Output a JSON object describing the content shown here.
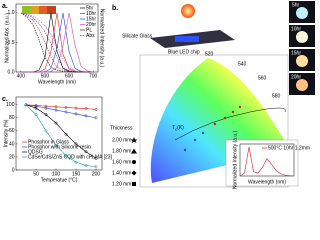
{
  "chart_data": [
    {
      "type": "line",
      "panel": "a.",
      "xlabel": "Wavelength (nm)",
      "ylabel": "Normalized Abs. (a.u.)",
      "y2label": "Normalized Intensity (a.u.)",
      "x": [
        400,
        425,
        450,
        475,
        500,
        525,
        550,
        575,
        600,
        625,
        650,
        675,
        700
      ],
      "xlim": [
        380,
        720
      ],
      "xticks": [
        400,
        500,
        600,
        700
      ],
      "ylim": [
        0,
        1.15
      ],
      "yticks": [
        {
          "value": 0,
          "label": "0.0"
        },
        0.5,
        {
          "value": 1,
          "label": "1.0"
        }
      ],
      "series": [
        {
          "name": "5hr",
          "color": "#000000",
          "values": [
            0,
            0,
            0,
            0.03,
            0.25,
            1.0,
            0.35,
            0.06,
            0.01,
            0,
            0,
            0,
            0
          ]
        },
        {
          "name": "10hr",
          "color": "#e02020",
          "values": [
            0,
            0,
            0,
            0,
            0.05,
            0.35,
            1.0,
            0.3,
            0.05,
            0.01,
            0,
            0,
            0
          ]
        },
        {
          "name": "15hr",
          "color": "#2040e0",
          "values": [
            0,
            0,
            0,
            0,
            0,
            0.06,
            0.4,
            1.0,
            0.35,
            0.06,
            0.01,
            0,
            0
          ]
        },
        {
          "name": "20hr",
          "color": "#e040c0",
          "values": [
            0,
            0,
            0,
            0,
            0,
            0.01,
            0.08,
            0.45,
            1.0,
            0.45,
            0.1,
            0.02,
            0
          ]
        }
      ],
      "abs_series": [
        {
          "values": [
            1.0,
            0.93,
            0.8,
            0.55,
            0.25,
            0.08,
            0.03,
            0.01,
            0,
            0,
            0,
            0,
            0
          ]
        },
        {
          "values": [
            1.0,
            0.95,
            0.88,
            0.72,
            0.5,
            0.25,
            0.08,
            0.03,
            0.01,
            0,
            0,
            0,
            0
          ]
        },
        {
          "values": [
            1.0,
            0.97,
            0.92,
            0.82,
            0.68,
            0.48,
            0.25,
            0.08,
            0.02,
            0.01,
            0,
            0,
            0
          ]
        },
        {
          "values": [
            1.0,
            0.98,
            0.95,
            0.88,
            0.78,
            0.64,
            0.45,
            0.22,
            0.07,
            0.02,
            0.01,
            0,
            0
          ]
        }
      ],
      "line_styles": [
        "PL",
        "Abs"
      ]
    },
    {
      "type": "line",
      "panel": "c.",
      "xlabel": "Temperatue (°C)",
      "ylabel": "Intensity (%)",
      "markers": true,
      "x": [
        25,
        50,
        75,
        100,
        125,
        150,
        175,
        200
      ],
      "xlim": [
        0,
        215
      ],
      "xticks": [
        50,
        100,
        150,
        200
      ],
      "ylim": [
        0,
        112
      ],
      "yticks": [
        0,
        20,
        40,
        60,
        80,
        100
      ],
      "series": [
        {
          "name": "Phosphor in Glass",
          "color": "#e02020",
          "values": [
            100,
            99,
            98,
            97,
            96,
            95,
            94,
            93
          ]
        },
        {
          "name": "Phosphor with Silicone resin",
          "color": "#2040e0",
          "values": [
            100,
            98,
            95,
            92,
            89,
            86,
            83,
            80
          ]
        },
        {
          "name": "QDSG",
          "color": "#000000",
          "values": [
            100,
            95,
            85,
            72,
            55,
            40,
            28,
            18
          ]
        },
        {
          "name": "CdSe/CdS/ZnS CQD with cPLMA [23]",
          "color": "#20a0a0",
          "values": [
            100,
            85,
            60,
            38,
            22,
            12,
            7,
            5
          ]
        }
      ]
    },
    {
      "type": "line",
      "xlabel": "Wavelength (nm)",
      "ylabel": "Normalized Intensity (a.u.)",
      "x": [
        400,
        425,
        450,
        475,
        500,
        525,
        550,
        575,
        600,
        625,
        650,
        675,
        700
      ],
      "xlim": [
        400,
        700
      ],
      "ylim": [
        0,
        1.1
      ],
      "series": [
        {
          "name": "500°C 10hr 1.2mm",
          "color": "#e02020",
          "values": [
            0,
            0.1,
            1.0,
            0.15,
            0.1,
            0.3,
            0.6,
            0.4,
            0.2,
            0.08,
            0.03,
            0.01,
            0
          ]
        }
      ]
    }
  ],
  "diagram": {
    "panel": "b.",
    "silicate_glass": "Silicate Glass",
    "blue_led_chip": "Blue LED chip",
    "wavelengths": [
      "520",
      "540",
      "560",
      "580"
    ],
    "tc": "T",
    "tc_sub": "c",
    "tc_unit": "(K)",
    "samples": [
      "5hr",
      "10hr",
      "15hr",
      "20hr"
    ],
    "thickness_title": "Thickness",
    "thicknesses": [
      "2.00 mm",
      "1.80 mm",
      "1.60 mm",
      "1.40 mm",
      "1.20 mm"
    ]
  }
}
